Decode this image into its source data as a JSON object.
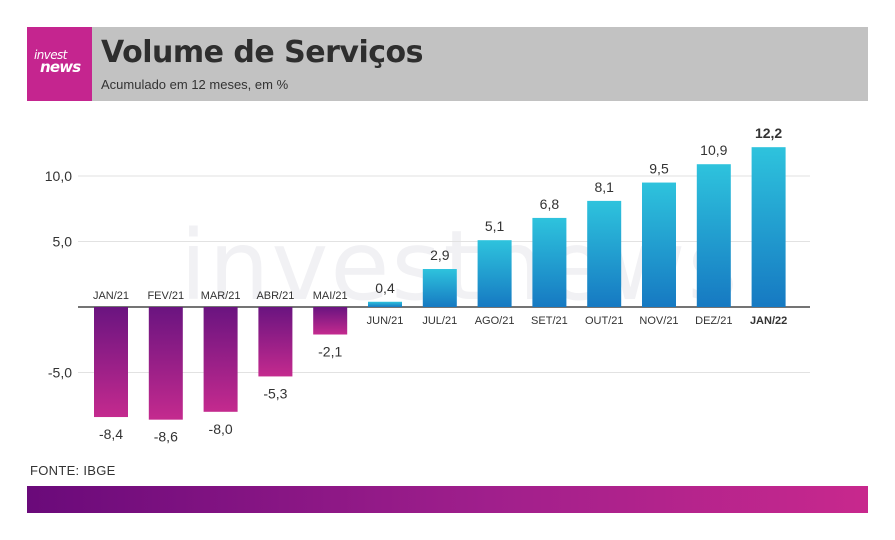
{
  "header": {
    "logo_line1": "invest",
    "logo_line2": "news",
    "title": "Volume de Serviços",
    "subtitle": "Acumulado em 12 meses, em %"
  },
  "source": "FONTE: IBGE",
  "watermark": "investnews",
  "colors": {
    "negative_top": "#6a1480",
    "negative_bottom": "#c42a8e",
    "positive_top": "#2ec3dd",
    "positive_bottom": "#1679c2",
    "brand_magenta": "#c5258f",
    "header_bg": "#c2c2c2"
  },
  "chart_data": {
    "type": "bar",
    "title": "Volume de Serviços",
    "subtitle": "Acumulado em 12 meses, em %",
    "categories": [
      "JAN/21",
      "FEV/21",
      "MAR/21",
      "ABR/21",
      "MAI/21",
      "JUN/21",
      "JUL/21",
      "AGO/21",
      "SET/21",
      "OUT/21",
      "NOV/21",
      "DEZ/21",
      "JAN/22"
    ],
    "values": [
      -8.4,
      -8.6,
      -8.0,
      -5.3,
      -2.1,
      0.4,
      2.9,
      5.1,
      6.8,
      8.1,
      9.5,
      10.9,
      12.2
    ],
    "value_labels": [
      "-8,4",
      "-8,6",
      "-8,0",
      "-5,3",
      "-2,1",
      "0,4",
      "2,9",
      "5,1",
      "6,8",
      "8,1",
      "9,5",
      "10,9",
      "12,2"
    ],
    "highlight_index": 12,
    "y_ticks": [
      10,
      5,
      -5
    ],
    "y_tick_labels": [
      "10,0",
      "5,0",
      "-5,0"
    ],
    "ylim": [
      -10,
      12.5
    ],
    "grid": true
  }
}
